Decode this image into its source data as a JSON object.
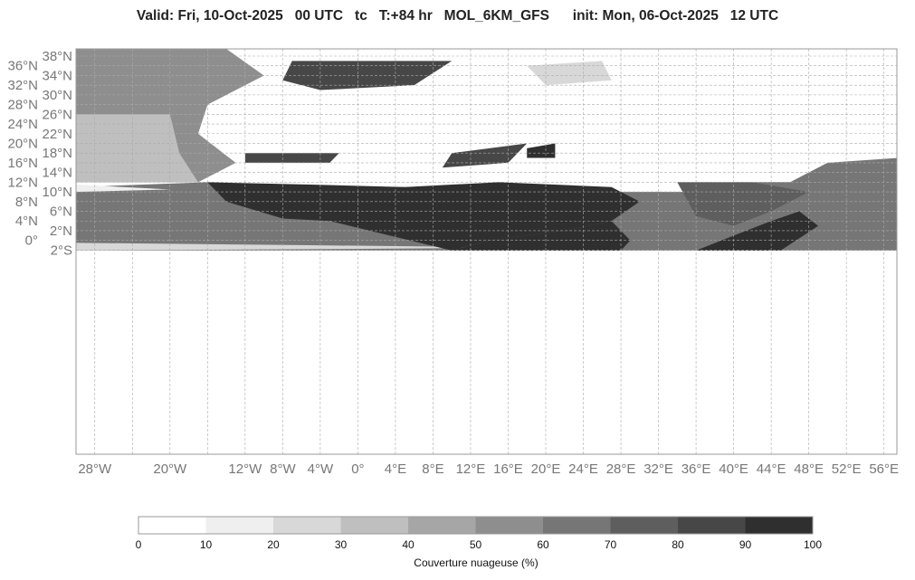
{
  "title": "Valid: Fri, 10-Oct-2025   00 UTC   tc   T:+84 hr   MOL_6KM_GFS      init: Mon, 06-Oct-2025   12 UTC",
  "map": {
    "variable": "tc",
    "model": "MOL_6KM_GFS",
    "lat_ticks": [
      "38°N",
      "36°N",
      "34°N",
      "32°N",
      "30°N",
      "28°N",
      "26°N",
      "24°N",
      "22°N",
      "20°N",
      "18°N",
      "16°N",
      "14°N",
      "12°N",
      "10°N",
      "8°N",
      "6°N",
      "4°N",
      "2°N",
      "0°",
      "2°S"
    ],
    "lat_values": [
      38,
      36,
      34,
      32,
      30,
      28,
      26,
      24,
      22,
      20,
      18,
      16,
      14,
      12,
      10,
      8,
      6,
      4,
      2,
      0,
      -2
    ],
    "lon_ticks": [
      "28°W",
      "20°W",
      "12°W",
      "8°W",
      "4°W",
      "0°",
      "4°E",
      "8°E",
      "12°E",
      "16°E",
      "20°E",
      "24°E",
      "28°E",
      "32°E",
      "36°E",
      "40°E",
      "44°E",
      "48°E",
      "52°E",
      "56°E"
    ],
    "lon_values": [
      -28,
      -20,
      -12,
      -8,
      -4,
      0,
      4,
      8,
      12,
      16,
      20,
      24,
      28,
      32,
      36,
      40,
      44,
      48,
      52,
      56
    ],
    "grid": true
  },
  "colorbar": {
    "label": "Couverture nuageuse (%)",
    "ticks": [
      "0",
      "10",
      "20",
      "30",
      "40",
      "50",
      "60",
      "70",
      "80",
      "90",
      "100"
    ],
    "colors": [
      "#ffffff",
      "#efefef",
      "#d8d8d8",
      "#bfbfbf",
      "#a6a6a6",
      "#8e8e8e",
      "#767676",
      "#5e5e5e",
      "#474747",
      "#2f2f2f"
    ]
  }
}
